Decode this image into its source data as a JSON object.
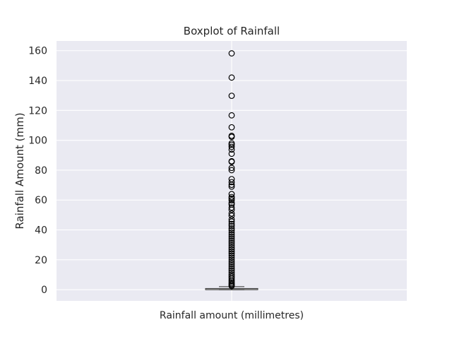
{
  "chart_data": {
    "type": "boxplot",
    "title": "Boxplot of Rainfall",
    "ylabel": "Rainfall Amount (mm)",
    "categories": [
      "Rainfall amount (millimetres)"
    ],
    "ylim": [
      -7.5,
      166.5
    ],
    "yticks": [
      0,
      20,
      40,
      60,
      80,
      100,
      120,
      140,
      160
    ],
    "grid": true,
    "box": {
      "whislo": 0,
      "q1": 0,
      "med": 0,
      "q3": 0.8,
      "whishi": 2.0
    },
    "outliers": [
      158.2,
      142.0,
      129.8,
      116.7,
      108.7,
      103.0,
      102.3,
      98.0,
      97.0,
      95.6,
      93.8,
      91.0,
      86.0,
      85.6,
      81.5,
      80.0,
      74.0,
      72.0,
      70.2,
      69.0,
      64.0,
      62.0,
      61.0,
      59.8,
      58.0,
      57.0,
      55.0,
      53.5,
      51.0,
      49.5,
      47.0,
      45.6,
      44.0,
      42.6,
      41.0,
      39.7,
      38.2,
      36.8,
      35.4,
      34.0,
      32.6,
      31.2,
      29.8,
      28.4,
      27.0,
      25.6,
      24.2,
      22.8,
      21.4,
      20.0,
      18.6,
      17.2,
      15.8,
      14.4,
      13.0,
      11.6,
      10.2,
      9.0,
      7.8,
      6.6,
      5.6,
      4.6,
      3.8,
      3.0,
      2.4
    ]
  }
}
